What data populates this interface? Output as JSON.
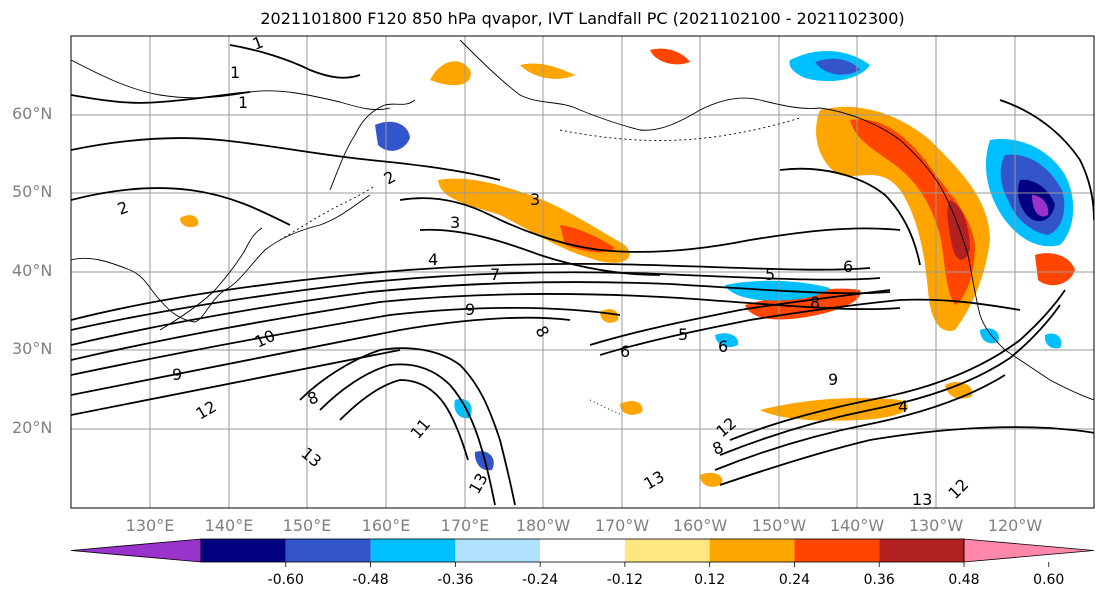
{
  "title": "2021101800 F120 850 hPa qvapor, IVT Landfall PC (2021102100 - 2021102300)",
  "lat_labels": [
    "60°N",
    "50°N",
    "40°N",
    "30°N",
    "20°N"
  ],
  "lon_labels": [
    "130°E",
    "140°E",
    "150°E",
    "160°E",
    "170°E",
    "180°W",
    "170°W",
    "160°W",
    "150°W",
    "140°W",
    "130°W",
    "120°W"
  ],
  "contour_labels": [
    "1",
    "1",
    "1",
    "2",
    "2",
    "3",
    "3",
    "4",
    "5",
    "6",
    "7",
    "8",
    "9",
    "9",
    "9",
    "8",
    "10",
    "12",
    "13",
    "11",
    "8",
    "13",
    "13",
    "5",
    "6",
    "8",
    "4",
    "12",
    "13",
    "12",
    "6"
  ],
  "colorbar": {
    "colors": [
      "#9933cc",
      "#000080",
      "#3355cc",
      "#00bfff",
      "#b0e2ff",
      "#ffffff",
      "#ffe680",
      "#ffa500",
      "#ff4500",
      "#b22222",
      "#ff88aa"
    ],
    "tick_labels": [
      "-0.60",
      "-0.48",
      "-0.36",
      "-0.24",
      "-0.12",
      "0.12",
      "0.24",
      "0.36",
      "0.48",
      "0.60"
    ]
  },
  "colors": {
    "grid": "#999999",
    "land_outline": "#000000",
    "contour": "#000000"
  }
}
